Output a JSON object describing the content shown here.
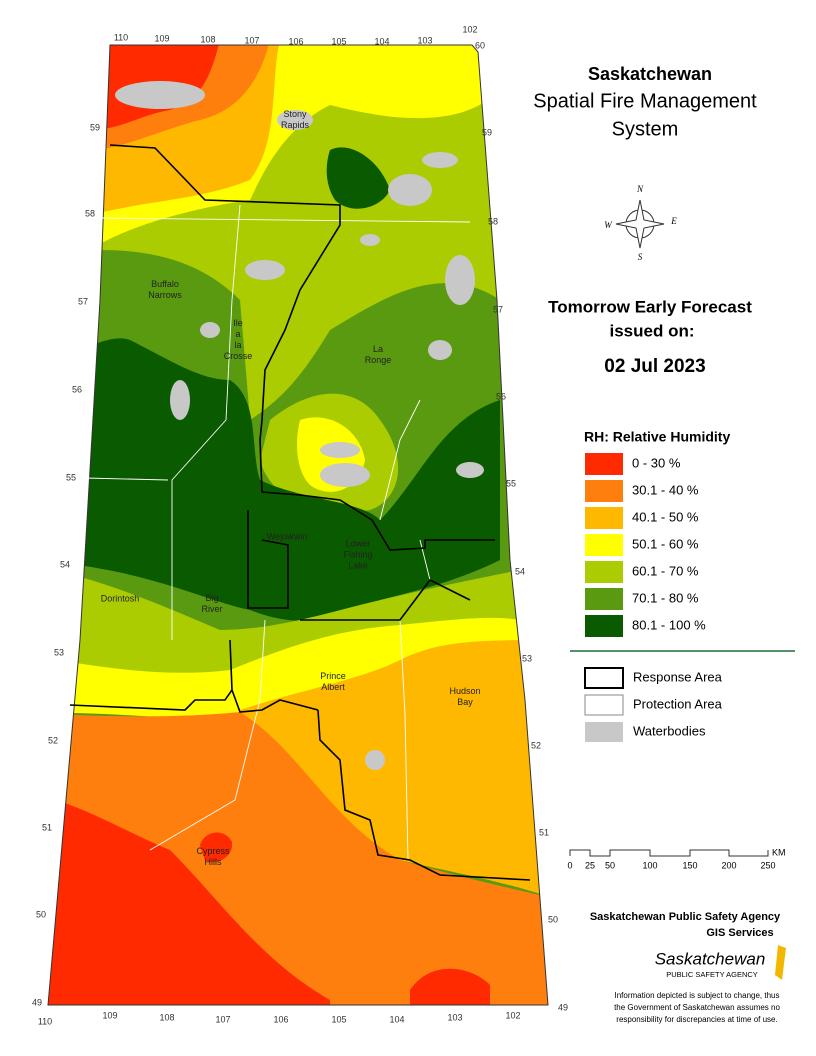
{
  "title": {
    "lines": [
      "Saskatchewan",
      "Spatial Fire Management",
      "System"
    ]
  },
  "forecast": {
    "lines": [
      "Tomorrow Early Forecast",
      "issued on:"
    ],
    "date": "02 Jul 2023"
  },
  "compass": {
    "labels": [
      "N",
      "E",
      "S",
      "W"
    ]
  },
  "legend": {
    "title": "RH: Relative Humidity",
    "classes": [
      {
        "label": "0 - 30 %",
        "color": "#ff2a00"
      },
      {
        "label": "30.1 - 40 %",
        "color": "#ff7f0e"
      },
      {
        "label": "40.1 - 50 %",
        "color": "#ffb800"
      },
      {
        "label": "50.1 - 60 %",
        "color": "#ffff00"
      },
      {
        "label": "60.1 - 70 %",
        "color": "#aacc00"
      },
      {
        "label": "70.1 - 80 %",
        "color": "#5a9a10"
      },
      {
        "label": "80.1 - 100 %",
        "color": "#0a5a00"
      }
    ]
  },
  "layers": [
    {
      "label": "Response Area"
    },
    {
      "label": "Protection Area"
    },
    {
      "label": "Waterbodies"
    }
  ],
  "scale": {
    "ticks": [
      "0",
      "25",
      "50",
      "100",
      "150",
      "200",
      "250"
    ],
    "unit": "KM"
  },
  "places": [
    {
      "lines": [
        "Stony",
        "Rapids"
      ]
    },
    {
      "lines": [
        "Buffalo",
        "Narrows"
      ]
    },
    {
      "lines": [
        "Ile",
        "a",
        "la",
        "Crosse"
      ]
    },
    {
      "lines": [
        "La",
        "Ronge"
      ]
    },
    {
      "lines": [
        "Weyakwin"
      ]
    },
    {
      "lines": [
        "Lower",
        "Fishing",
        "Lake"
      ]
    },
    {
      "lines": [
        "Dorintosh"
      ]
    },
    {
      "lines": [
        "Big",
        "River"
      ]
    },
    {
      "lines": [
        "Prince",
        "Albert"
      ]
    },
    {
      "lines": [
        "Hudson",
        "Bay"
      ]
    },
    {
      "lines": [
        "Cypress",
        "Hills"
      ]
    }
  ],
  "graticule": {
    "top": [
      "110",
      "109",
      "108",
      "107",
      "106",
      "105",
      "104",
      "103",
      "102",
      "60"
    ],
    "left": [
      "59",
      "58",
      "57",
      "56",
      "55",
      "54",
      "53",
      "52",
      "51",
      "50",
      "49"
    ],
    "right": [
      "59",
      "58",
      "57",
      "56",
      "55",
      "54",
      "53",
      "52",
      "51",
      "50",
      "49"
    ],
    "bottom": [
      "110",
      "109",
      "108",
      "107",
      "106",
      "105",
      "104",
      "103",
      "102"
    ]
  },
  "credits": {
    "agency": "Saskatchewan Public Safety Agency",
    "unit": "GIS  Services",
    "logo": "Saskatchewan",
    "logo_sub": "PUBLIC SAFETY AGENCY",
    "disclaimer": [
      "Information depicted is subject to change, thus",
      "the Government of Saskatchewan assumes no",
      "responsibility for discrepancies at time of use."
    ]
  }
}
